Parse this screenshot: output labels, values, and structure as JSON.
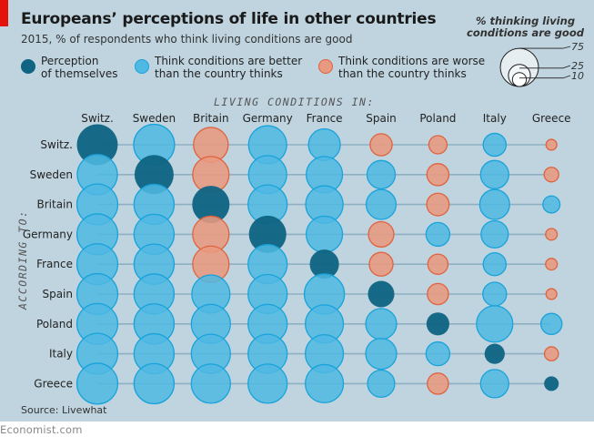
{
  "header": {
    "title": "Europeans’ perceptions of life in other countries",
    "subtitle": "2015, % of respondents who think living conditions are good"
  },
  "legend": {
    "items": [
      {
        "key": "self",
        "label": "Perception of themselves",
        "line1": "Perception",
        "line2": "of themselves"
      },
      {
        "key": "better",
        "label": "Think conditions are better than the country thinks",
        "line1": "Think conditions are better",
        "line2": "than the country thinks"
      },
      {
        "key": "worse",
        "label": "Think conditions are worse than the country thinks",
        "line1": "Think conditions are worse",
        "line2": "than the country thinks"
      }
    ],
    "size_title_line1": "% thinking living",
    "size_title_line2": "conditions are good",
    "size_values": [
      75,
      25,
      10
    ],
    "size_labels": [
      "75",
      "25",
      "10"
    ]
  },
  "colors": {
    "self": "#0e6482",
    "better": "#4fb8e3",
    "better_stroke": "#19a3da",
    "worse": "#e89a80",
    "worse_stroke": "#e0623f",
    "background": "#bfd4df",
    "gridline": "#8fb0c2",
    "brand_red": "#e3120b"
  },
  "source": "Source: Livewhat",
  "footer": "Economist.com",
  "chart_data": {
    "type": "bubble-matrix",
    "title": "Europeans’ perceptions of life in other countries",
    "subtitle": "2015, % of respondents who think living conditions are good",
    "xlabel": "LIVING CONDITIONS IN:",
    "ylabel": "ACCORDING TO:",
    "columns": [
      "Switz.",
      "Sweden",
      "Britain",
      "Germany",
      "France",
      "Spain",
      "Poland",
      "Italy",
      "Greece"
    ],
    "rows": [
      "Switz.",
      "Sweden",
      "Britain",
      "Germany",
      "France",
      "Spain",
      "Poland",
      "Italy",
      "Greece"
    ],
    "size_encoding": "area proportional to % thinking living conditions are good",
    "values": [
      [
        86,
        86,
        62,
        75,
        52,
        25,
        17,
        27,
        6
      ],
      [
        83,
        79,
        68,
        75,
        68,
        41,
        25,
        41,
        11
      ],
      [
        86,
        83,
        72,
        79,
        72,
        46,
        26,
        46,
        15
      ],
      [
        86,
        83,
        68,
        72,
        68,
        33,
        29,
        38,
        7
      ],
      [
        86,
        83,
        68,
        79,
        44,
        29,
        21,
        27,
        7
      ],
      [
        86,
        83,
        75,
        79,
        83,
        36,
        23,
        29,
        6
      ],
      [
        86,
        83,
        79,
        79,
        75,
        49,
        27,
        68,
        23
      ],
      [
        86,
        83,
        79,
        79,
        75,
        49,
        29,
        21,
        10
      ],
      [
        86,
        83,
        79,
        79,
        75,
        38,
        23,
        41,
        11
      ]
    ],
    "types": [
      [
        "self",
        "better",
        "worse",
        "better",
        "better",
        "worse",
        "worse",
        "better",
        "worse"
      ],
      [
        "better",
        "self",
        "worse",
        "better",
        "better",
        "better",
        "worse",
        "better",
        "worse"
      ],
      [
        "better",
        "better",
        "self",
        "better",
        "better",
        "better",
        "worse",
        "better",
        "better"
      ],
      [
        "better",
        "better",
        "worse",
        "self",
        "better",
        "worse",
        "better",
        "better",
        "worse"
      ],
      [
        "better",
        "better",
        "worse",
        "better",
        "self",
        "worse",
        "worse",
        "better",
        "worse"
      ],
      [
        "better",
        "better",
        "better",
        "better",
        "better",
        "self",
        "worse",
        "better",
        "worse"
      ],
      [
        "better",
        "better",
        "better",
        "better",
        "better",
        "better",
        "self",
        "better",
        "better"
      ],
      [
        "better",
        "better",
        "better",
        "better",
        "better",
        "better",
        "better",
        "self",
        "worse"
      ],
      [
        "better",
        "better",
        "better",
        "better",
        "better",
        "better",
        "worse",
        "better",
        "self"
      ]
    ]
  }
}
